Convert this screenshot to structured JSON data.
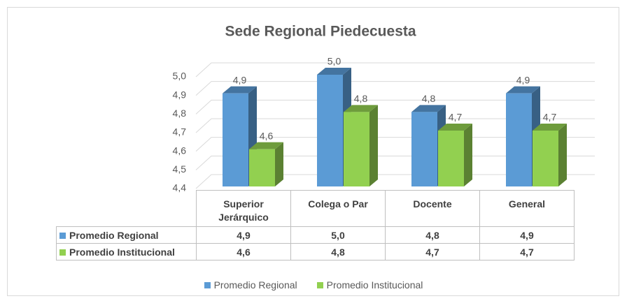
{
  "chart_data": {
    "type": "bar3d",
    "title": "Sede Regional Piedecuesta",
    "categories": [
      "Superior Jerárquico",
      "Colega o Par",
      "Docente",
      "General"
    ],
    "series": [
      {
        "name": "Promedio Regional",
        "color": "#5b9bd5",
        "values": [
          4.9,
          5.0,
          4.8,
          4.9
        ],
        "value_labels": [
          "4,9",
          "5,0",
          "4,8",
          "4,9"
        ]
      },
      {
        "name": "Promedio Institucional",
        "color": "#92d050",
        "values": [
          4.6,
          4.8,
          4.7,
          4.7
        ],
        "value_labels": [
          "4,6",
          "4,8",
          "4,7",
          "4,7"
        ]
      }
    ],
    "ylim": [
      4.4,
      5.0
    ],
    "yticks": [
      {
        "value": 4.4,
        "label": "4,4"
      },
      {
        "value": 4.5,
        "label": "4,5"
      },
      {
        "value": 4.6,
        "label": "4,6"
      },
      {
        "value": 4.7,
        "label": "4,7"
      },
      {
        "value": 4.8,
        "label": "4,8"
      },
      {
        "value": 4.9,
        "label": "4,9"
      },
      {
        "value": 5.0,
        "label": "5,0"
      }
    ],
    "grid": true,
    "legend": "bottom"
  }
}
